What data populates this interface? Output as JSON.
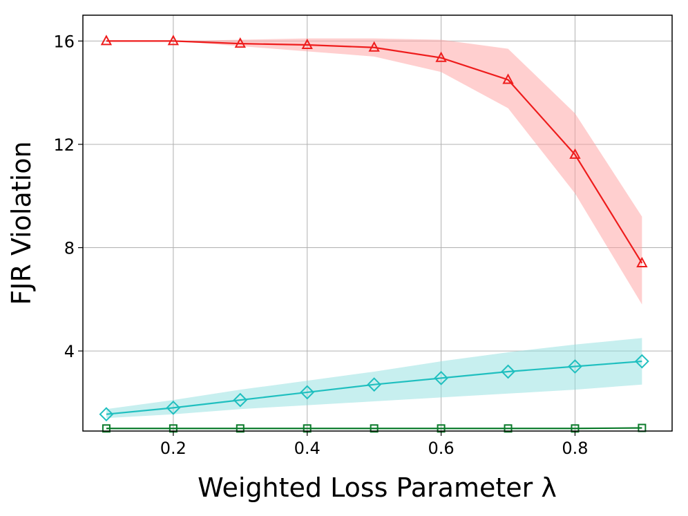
{
  "chart_data": {
    "type": "line",
    "title": "",
    "xlabel": "Weighted Loss Parameter λ",
    "ylabel": "FJR Violation",
    "xlim": [
      0.065,
      0.945
    ],
    "ylim": [
      0.9,
      17.0
    ],
    "xticks": [
      0.2,
      0.4,
      0.6,
      0.8
    ],
    "xtick_labels": [
      "0.2",
      "0.4",
      "0.6",
      "0.8"
    ],
    "yticks": [
      4,
      8,
      12,
      16
    ],
    "ytick_labels": [
      "4",
      "8",
      "12",
      "16"
    ],
    "grid": true,
    "legend": "none",
    "x": [
      0.1,
      0.2,
      0.3,
      0.4,
      0.5,
      0.6,
      0.7,
      0.8,
      0.9
    ],
    "series": [
      {
        "name": "red-triangle",
        "color": "#ee1c1c",
        "band_color": "#ff9f9f",
        "marker": "triangle",
        "values": [
          16.0,
          16.0,
          15.9,
          15.85,
          15.75,
          15.35,
          14.5,
          11.6,
          7.4
        ],
        "lower": [
          16.0,
          16.0,
          15.8,
          15.6,
          15.4,
          14.8,
          13.4,
          10.1,
          5.8
        ],
        "upper": [
          16.0,
          16.0,
          16.05,
          16.1,
          16.1,
          16.05,
          15.7,
          13.2,
          9.2
        ]
      },
      {
        "name": "cyan-diamond",
        "color": "#1fbfbf",
        "band_color": "#8fdfdf",
        "marker": "diamond",
        "values": [
          1.55,
          1.8,
          2.1,
          2.4,
          2.7,
          2.95,
          3.2,
          3.4,
          3.6
        ],
        "lower": [
          1.4,
          1.55,
          1.75,
          1.9,
          2.05,
          2.2,
          2.35,
          2.5,
          2.7
        ],
        "upper": [
          1.75,
          2.1,
          2.5,
          2.85,
          3.2,
          3.6,
          3.95,
          4.25,
          4.5
        ]
      },
      {
        "name": "green-square",
        "color": "#0a7a2a",
        "band_color": "#7fbf8f",
        "marker": "square",
        "values": [
          1.0,
          1.0,
          1.0,
          1.0,
          1.0,
          1.0,
          1.0,
          1.0,
          1.02
        ],
        "lower": [
          1.0,
          1.0,
          1.0,
          1.0,
          1.0,
          1.0,
          1.0,
          1.0,
          1.0
        ],
        "upper": [
          1.0,
          1.0,
          1.0,
          1.0,
          1.0,
          1.0,
          1.0,
          1.0,
          1.04
        ]
      }
    ]
  }
}
